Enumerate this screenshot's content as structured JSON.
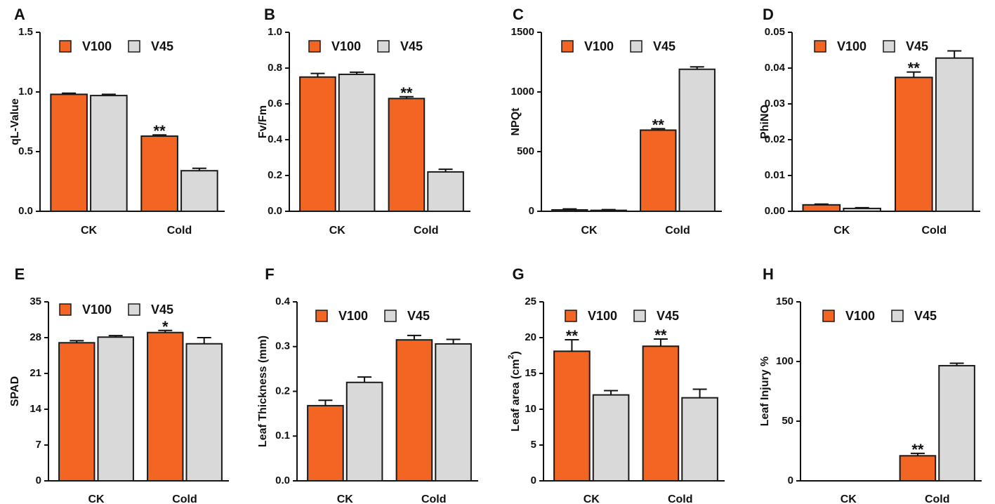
{
  "colors": {
    "V100": "#f26522",
    "V45": "#d9d9d9",
    "stroke": "#1a1a1a"
  },
  "chart_data": [
    {
      "panel": "A",
      "type": "bar",
      "ylabel": "qL-Value",
      "ylim": [
        0,
        1.5
      ],
      "yticks": [
        0.0,
        0.5,
        1.0,
        1.5
      ],
      "ytick_labels": [
        "0.0",
        "0.5",
        "1.0",
        "1.5"
      ],
      "categories": [
        "CK",
        "Cold"
      ],
      "legend": [
        "V100",
        "V45"
      ],
      "series": [
        {
          "name": "V100",
          "values": [
            0.98,
            0.63
          ],
          "errors": [
            0.01,
            0.01
          ],
          "sig": [
            "",
            "**"
          ]
        },
        {
          "name": "V45",
          "values": [
            0.97,
            0.34
          ],
          "errors": [
            0.01,
            0.02
          ],
          "sig": [
            "",
            ""
          ]
        }
      ]
    },
    {
      "panel": "B",
      "type": "bar",
      "ylabel": "Fv/Fm",
      "ylim": [
        0,
        1.0
      ],
      "yticks": [
        0.0,
        0.2,
        0.4,
        0.6,
        0.8,
        1.0
      ],
      "ytick_labels": [
        "0.0",
        "0.2",
        "0.4",
        "0.6",
        "0.8",
        "1.0"
      ],
      "categories": [
        "CK",
        "Cold"
      ],
      "legend": [
        "V100",
        "V45"
      ],
      "series": [
        {
          "name": "V100",
          "values": [
            0.75,
            0.63
          ],
          "errors": [
            0.02,
            0.01
          ],
          "sig": [
            "",
            "**"
          ]
        },
        {
          "name": "V45",
          "values": [
            0.765,
            0.22
          ],
          "errors": [
            0.012,
            0.015
          ],
          "sig": [
            "",
            ""
          ]
        }
      ]
    },
    {
      "panel": "C",
      "type": "bar",
      "ylabel": "NPQt",
      "ylim": [
        0,
        1500
      ],
      "yticks": [
        0,
        500,
        1000,
        1500
      ],
      "ytick_labels": [
        "0",
        "500",
        "1000",
        "1500"
      ],
      "categories": [
        "CK",
        "Cold"
      ],
      "legend": [
        "V100",
        "V45"
      ],
      "series": [
        {
          "name": "V100",
          "values": [
            12,
            680
          ],
          "errors": [
            8,
            12
          ],
          "sig": [
            "",
            "**"
          ]
        },
        {
          "name": "V45",
          "values": [
            8,
            1190
          ],
          "errors": [
            6,
            20
          ],
          "sig": [
            "",
            ""
          ]
        }
      ]
    },
    {
      "panel": "D",
      "type": "bar",
      "ylabel": "PhiNO",
      "ylim": [
        0,
        0.05
      ],
      "yticks": [
        0.0,
        0.01,
        0.02,
        0.03,
        0.04,
        0.05
      ],
      "ytick_labels": [
        "0.00",
        "0.01",
        "0.02",
        "0.03",
        "0.04",
        "0.05"
      ],
      "categories": [
        "CK",
        "Cold"
      ],
      "legend": [
        "V100",
        "V45"
      ],
      "series": [
        {
          "name": "V100",
          "values": [
            0.0018,
            0.0374
          ],
          "errors": [
            0.0002,
            0.0015
          ],
          "sig": [
            "",
            "**"
          ]
        },
        {
          "name": "V45",
          "values": [
            0.0008,
            0.0428
          ],
          "errors": [
            0.0002,
            0.002
          ],
          "sig": [
            "",
            ""
          ]
        }
      ]
    },
    {
      "panel": "E",
      "type": "bar",
      "ylabel": "SPAD",
      "ylim": [
        0,
        35
      ],
      "yticks": [
        0,
        7,
        14,
        21,
        28,
        35
      ],
      "ytick_labels": [
        "0",
        "7",
        "14",
        "21",
        "28",
        "35"
      ],
      "categories": [
        "CK",
        "Cold"
      ],
      "legend": [
        "V100",
        "V45"
      ],
      "series": [
        {
          "name": "V100",
          "values": [
            27.0,
            29.0
          ],
          "errors": [
            0.4,
            0.4
          ],
          "sig": [
            "",
            "*"
          ]
        },
        {
          "name": "V45",
          "values": [
            28.1,
            26.8
          ],
          "errors": [
            0.3,
            1.2
          ],
          "sig": [
            "",
            ""
          ]
        }
      ]
    },
    {
      "panel": "F",
      "type": "bar",
      "ylabel": "Leaf Thickness (mm)",
      "ylim": [
        0,
        0.4
      ],
      "yticks": [
        0.0,
        0.1,
        0.2,
        0.3,
        0.4
      ],
      "ytick_labels": [
        "0.0",
        "0.1",
        "0.2",
        "0.3",
        "0.4"
      ],
      "categories": [
        "CK",
        "Cold"
      ],
      "legend": [
        "V100",
        "V45"
      ],
      "series": [
        {
          "name": "V100",
          "values": [
            0.168,
            0.315
          ],
          "errors": [
            0.012,
            0.01
          ],
          "sig": [
            "",
            ""
          ]
        },
        {
          "name": "V45",
          "values": [
            0.22,
            0.306
          ],
          "errors": [
            0.012,
            0.01
          ],
          "sig": [
            "",
            ""
          ]
        }
      ]
    },
    {
      "panel": "G",
      "type": "bar",
      "ylabel": "Leaf area (cm2)",
      "ylabel_main": "Leaf area (cm",
      "ylabel_sup": "2",
      "ylabel_end": ")",
      "ylim": [
        0,
        25
      ],
      "yticks": [
        0,
        5,
        10,
        15,
        20,
        25
      ],
      "ytick_labels": [
        "0",
        "5",
        "10",
        "15",
        "20",
        "25"
      ],
      "categories": [
        "CK",
        "Cold"
      ],
      "legend": [
        "V100",
        "V45"
      ],
      "series": [
        {
          "name": "V100",
          "values": [
            18.1,
            18.8
          ],
          "errors": [
            1.6,
            1.0
          ],
          "sig": [
            "**",
            "**"
          ]
        },
        {
          "name": "V45",
          "values": [
            12.0,
            11.6
          ],
          "errors": [
            0.6,
            1.2
          ],
          "sig": [
            "",
            ""
          ]
        }
      ]
    },
    {
      "panel": "H",
      "type": "bar",
      "ylabel": "Leaf Injury %",
      "ylim": [
        0,
        150
      ],
      "yticks": [
        0,
        50,
        100,
        150
      ],
      "ytick_labels": [
        "0",
        "50",
        "100",
        "150"
      ],
      "categories": [
        "CK",
        "Cold"
      ],
      "legend": [
        "V100",
        "V45"
      ],
      "series": [
        {
          "name": "V100",
          "values": [
            0,
            21
          ],
          "errors": [
            0,
            2
          ],
          "sig": [
            "",
            "**"
          ]
        },
        {
          "name": "V45",
          "values": [
            0,
            96.5
          ],
          "errors": [
            0,
            2
          ],
          "sig": [
            "",
            ""
          ]
        }
      ]
    }
  ]
}
